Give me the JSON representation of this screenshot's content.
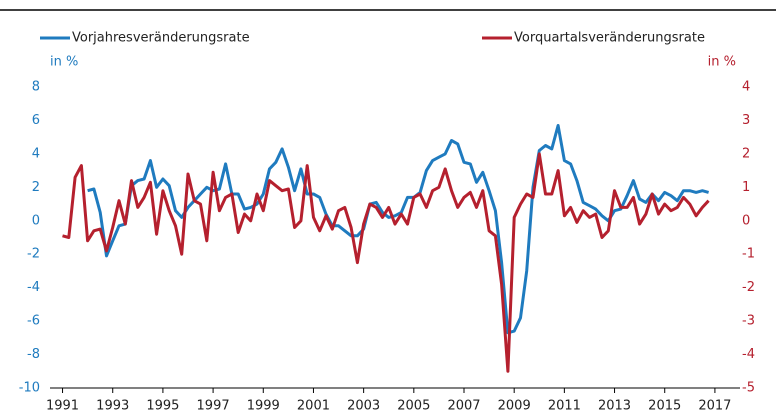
{
  "chart_data": {
    "type": "line",
    "x": [
      1991,
      1991.25,
      1991.5,
      1991.75,
      1992,
      1992.25,
      1992.5,
      1992.75,
      1993,
      1993.25,
      1993.5,
      1993.75,
      1994,
      1994.25,
      1994.5,
      1994.75,
      1995,
      1995.25,
      1995.5,
      1995.75,
      1996,
      1996.25,
      1996.5,
      1996.75,
      1997,
      1997.25,
      1997.5,
      1997.75,
      1998,
      1998.25,
      1998.5,
      1998.75,
      1999,
      1999.25,
      1999.5,
      1999.75,
      2000,
      2000.25,
      2000.5,
      2000.75,
      2001,
      2001.25,
      2001.5,
      2001.75,
      2002,
      2002.25,
      2002.5,
      2002.75,
      2003,
      2003.25,
      2003.5,
      2003.75,
      2004,
      2004.25,
      2004.5,
      2004.75,
      2005,
      2005.25,
      2005.5,
      2005.75,
      2006,
      2006.25,
      2006.5,
      2006.75,
      2007,
      2007.25,
      2007.5,
      2007.75,
      2008,
      2008.25,
      2008.5,
      2008.75,
      2009,
      2009.25,
      2009.5,
      2009.75,
      2010,
      2010.25,
      2010.5,
      2010.75,
      2011,
      2011.25,
      2011.5,
      2011.75,
      2012,
      2012.25,
      2012.5,
      2012.75,
      2013,
      2013.25,
      2013.5,
      2013.75,
      2014,
      2014.25,
      2014.5,
      2014.75,
      2015,
      2015.25,
      2015.5,
      2015.75,
      2016,
      2016.25,
      2016.5,
      2016.75
    ],
    "series": [
      {
        "name": "Vorjahresveränderungsrate",
        "color": "#1f7bbf",
        "axis": "y",
        "values": [
          null,
          null,
          null,
          null,
          1.8,
          1.9,
          0.5,
          -2.1,
          -1.2,
          -0.3,
          -0.2,
          2.1,
          2.4,
          2.5,
          3.6,
          2.0,
          2.5,
          2.1,
          0.6,
          0.2,
          0.8,
          1.2,
          1.6,
          2.0,
          1.8,
          1.9,
          3.4,
          1.6,
          1.6,
          0.7,
          0.8,
          1.0,
          1.6,
          3.1,
          3.5,
          4.3,
          3.2,
          1.8,
          3.1,
          1.6,
          1.6,
          1.4,
          0.4,
          -0.3,
          -0.3,
          -0.6,
          -0.9,
          -0.9,
          -0.5,
          1.0,
          1.1,
          0.5,
          0.2,
          0.3,
          0.5,
          1.4,
          1.4,
          1.7,
          3.0,
          3.6,
          3.8,
          4.0,
          4.8,
          4.6,
          3.5,
          3.4,
          2.3,
          2.9,
          1.8,
          0.6,
          -2.5,
          -6.7,
          -6.6,
          -5.8,
          -3.0,
          2.0,
          4.2,
          4.5,
          4.3,
          5.7,
          3.6,
          3.4,
          2.4,
          1.1,
          0.9,
          0.7,
          0.3,
          0.0,
          0.6,
          0.7,
          1.5,
          2.4,
          1.3,
          1.1,
          1.6,
          1.2,
          1.7,
          1.5,
          1.2,
          1.8,
          1.8,
          1.7,
          1.8,
          1.7
        ]
      },
      {
        "name": "Vorquartalsveränderungsrate",
        "color": "#b5202e",
        "axis": "y2",
        "values": [
          -0.45,
          -0.5,
          1.3,
          1.65,
          -0.6,
          -0.3,
          -0.25,
          -0.9,
          -0.2,
          0.6,
          -0.1,
          1.2,
          0.4,
          0.7,
          1.15,
          -0.4,
          0.9,
          0.3,
          -0.15,
          -1.0,
          1.4,
          0.6,
          0.5,
          -0.6,
          1.45,
          0.3,
          0.7,
          0.8,
          -0.35,
          0.2,
          0,
          0.8,
          0.3,
          1.2,
          1.05,
          0.9,
          0.95,
          -0.2,
          0,
          1.65,
          0.1,
          -0.3,
          0.15,
          -0.25,
          0.3,
          0.4,
          -0.2,
          -1.25,
          -0.1,
          0.5,
          0.4,
          0.1,
          0.4,
          -0.1,
          0.2,
          -0.1,
          0.7,
          0.8,
          0.4,
          0.9,
          1.0,
          1.55,
          0.9,
          0.4,
          0.7,
          0.85,
          0.4,
          0.9,
          -0.3,
          -0.45,
          -1.9,
          -4.5,
          0.1,
          0.5,
          0.8,
          0.7,
          2.0,
          0.8,
          0.8,
          1.5,
          0.15,
          0.4,
          -0.05,
          0.3,
          0.1,
          0.2,
          -0.5,
          -0.3,
          0.9,
          0.4,
          0.4,
          0.7,
          -0.1,
          0.2,
          0.8,
          0.2,
          0.5,
          0.3,
          0.4,
          0.7,
          0.5,
          0.15,
          0.4,
          0.6
        ]
      }
    ],
    "y_label": "in %",
    "y2_label": "in %",
    "xlim": [
      1990.5,
      2018
    ],
    "xticks": [
      1991,
      1993,
      1995,
      1997,
      1999,
      2001,
      2003,
      2005,
      2007,
      2009,
      2011,
      2013,
      2015,
      2017
    ],
    "ylim": [
      -10,
      8
    ],
    "yticks": [
      -10,
      -8,
      -6,
      -4,
      -2,
      0,
      2,
      4,
      6,
      8
    ],
    "y2lim": [
      -5,
      4
    ],
    "y2ticks": [
      -5,
      -4,
      -3,
      -2,
      -1,
      0,
      1,
      2,
      3,
      4
    ],
    "grid": false
  }
}
